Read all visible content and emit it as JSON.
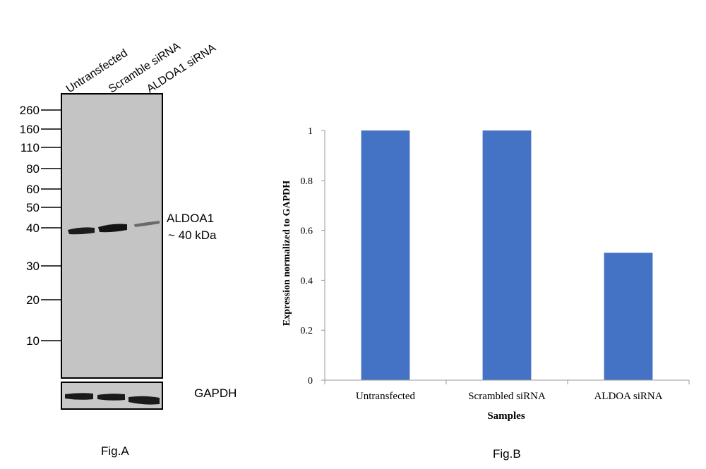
{
  "figure_a": {
    "lane_labels": [
      "Untransfected",
      "Scramble siRNA",
      "ALDOA1 siRNA"
    ],
    "markers": [
      "260",
      "160",
      "110",
      "80",
      "60",
      "50",
      "40",
      "30",
      "20",
      "10"
    ],
    "band_label_line1": "ALDOA1",
    "band_label_line2": "~ 40 kDa",
    "loading_control": "GAPDH",
    "caption": "Fig.A",
    "colors": {
      "blot": "#c4c4c4",
      "band": "#1c1c1c"
    }
  },
  "figure_b": {
    "caption": "Fig.B",
    "chart_data": {
      "type": "bar",
      "categories": [
        "Untransfected",
        "Scrambled siRNA",
        "ALDOA siRNA"
      ],
      "values": [
        1.0,
        1.0,
        0.51
      ],
      "xlabel": "Samples",
      "ylabel": "Expression normalized to GAPDH",
      "ylim": [
        0,
        1
      ],
      "yticks": [
        "0",
        "0.2",
        "0.4",
        "0.6",
        "0.8",
        "1"
      ],
      "grid": false,
      "legend": "none",
      "bar_color": "#4472c4"
    }
  }
}
